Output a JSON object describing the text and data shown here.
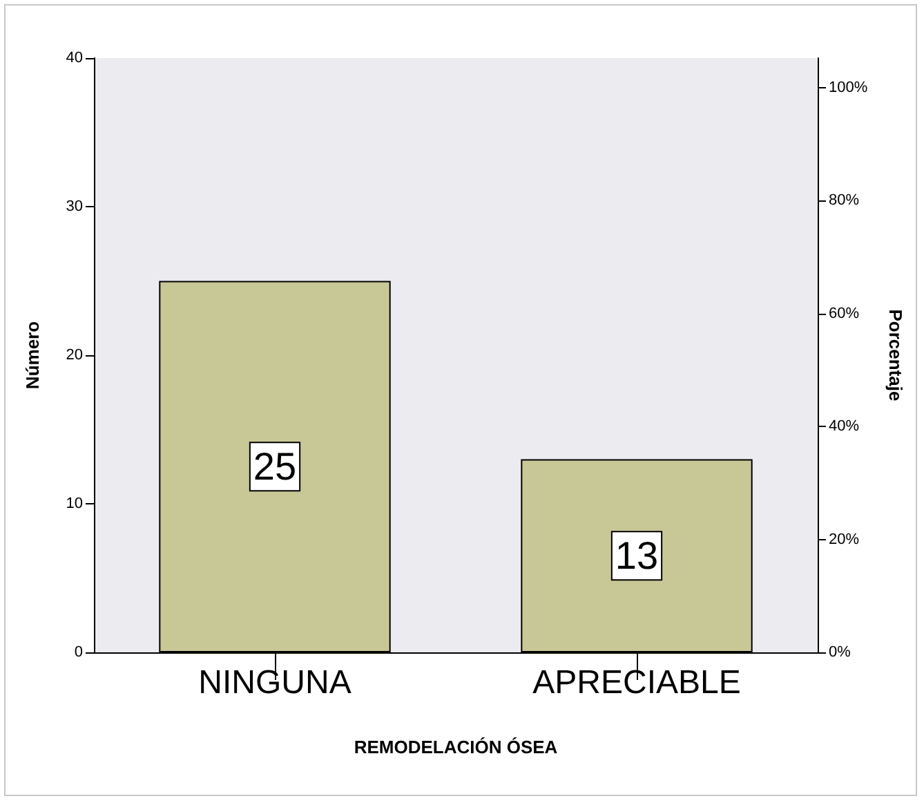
{
  "chart_data": {
    "type": "bar",
    "xlabel": "REMODELACIÓN ÓSEA",
    "ylabel": "Número",
    "y2label": "Porcentaje",
    "categories": [
      "NINGUNA",
      "APRECIABLE"
    ],
    "values": [
      25,
      13
    ],
    "color": "#c8c796",
    "data_labels": true,
    "ylim": [
      0,
      40
    ],
    "yticks": [
      0,
      10,
      20,
      30,
      40
    ],
    "y2lim": [
      0,
      105.26
    ],
    "y2ticks": [
      {
        "value": 0,
        "label": "0%"
      },
      {
        "value": 20,
        "label": "20%"
      },
      {
        "value": 40,
        "label": "40%"
      },
      {
        "value": 60,
        "label": "60%"
      },
      {
        "value": 80,
        "label": "80%"
      },
      {
        "value": 100,
        "label": "100%"
      }
    ],
    "grid": false
  }
}
